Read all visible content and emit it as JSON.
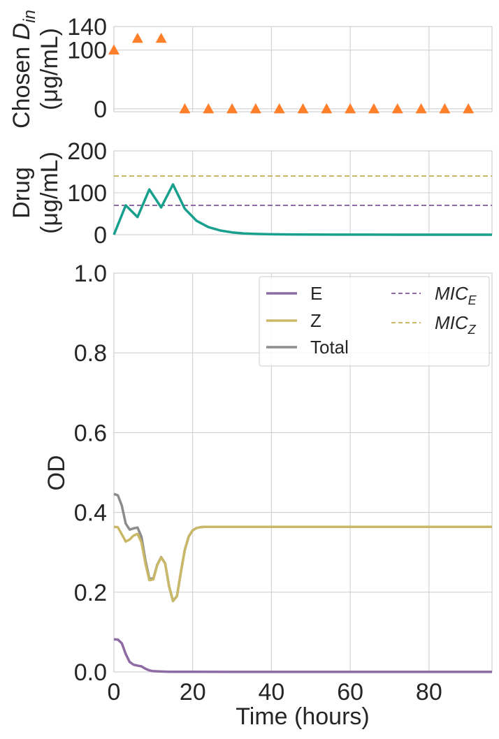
{
  "colors": {
    "dose": "#FF7F2A",
    "drug": "#17A08D",
    "E": "#8E6BA5",
    "Z": "#C9B867",
    "total": "#8C8C8C",
    "mic_e": "#8E6BA5",
    "mic_z": "#C9B867",
    "grid": "#D0D0D0"
  },
  "chart_data": [
    {
      "type": "scatter",
      "ylabel_line1": "Chosen ",
      "ylabel_symbol": "D",
      "ylabel_subscript": "in",
      "ylabel_line2": "(μg/mL)",
      "xlim": [
        0,
        96
      ],
      "ylim": [
        -5,
        140
      ],
      "yticks": [
        0,
        100,
        140
      ],
      "xticks": [
        0,
        20,
        40,
        60,
        80
      ],
      "marker": "triangle",
      "points": {
        "x": [
          0,
          6,
          12,
          18,
          24,
          30,
          36,
          42,
          48,
          54,
          60,
          66,
          72,
          78,
          84,
          90
        ],
        "y": [
          100,
          120,
          120,
          0,
          0,
          0,
          0,
          0,
          0,
          0,
          0,
          0,
          0,
          0,
          0,
          0
        ]
      }
    },
    {
      "type": "line",
      "ylabel_line1": "Drug",
      "ylabel_line2": "(μg/mL)",
      "xlim": [
        0,
        96
      ],
      "ylim": [
        0,
        200
      ],
      "yticks": [
        0,
        100,
        200
      ],
      "xticks": [
        0,
        20,
        40,
        60,
        80
      ],
      "hlines": [
        {
          "name": "MIC_E",
          "y": 70
        },
        {
          "name": "MIC_Z",
          "y": 140
        }
      ],
      "series": [
        {
          "x": [
            0,
            3,
            6,
            9,
            12,
            15,
            18,
            21,
            24,
            27,
            30,
            33,
            36,
            40,
            44,
            48,
            56,
            64,
            72,
            80,
            88,
            96
          ],
          "y": [
            0,
            70,
            42,
            108,
            65,
            120,
            62,
            33,
            18,
            10,
            5.5,
            3,
            1.8,
            1,
            0.6,
            0.4,
            0.2,
            0.1,
            0,
            0,
            0,
            0
          ]
        }
      ]
    },
    {
      "type": "line",
      "xlabel": "Time (hours)",
      "ylabel": "OD",
      "xlim": [
        0,
        96
      ],
      "ylim": [
        0,
        1.0
      ],
      "yticks": [
        "0.0",
        "0.2",
        "0.4",
        "0.6",
        "0.8",
        "1.0"
      ],
      "xticks": [
        "0",
        "20",
        "40",
        "60",
        "80"
      ],
      "series": [
        {
          "name": "E",
          "x": [
            0,
            1,
            2,
            3,
            4,
            5,
            6,
            7,
            8,
            9,
            10,
            12,
            14,
            20,
            30,
            40,
            60,
            80,
            96
          ],
          "y": [
            0.082,
            0.081,
            0.072,
            0.045,
            0.025,
            0.018,
            0.016,
            0.014,
            0.008,
            0.004,
            0.002,
            0.001,
            0.0005,
            0.0003,
            0.0002,
            0.0001,
            0.0001,
            0.0001,
            0.0001
          ]
        },
        {
          "name": "Z",
          "x": [
            0,
            1,
            2,
            3,
            4,
            5,
            6,
            7,
            8,
            9,
            10,
            11,
            12,
            13,
            14,
            15,
            16,
            17,
            18,
            19,
            20,
            21,
            22,
            23,
            24,
            26,
            30,
            40,
            60,
            80,
            96
          ],
          "y": [
            0.364,
            0.363,
            0.345,
            0.327,
            0.332,
            0.342,
            0.346,
            0.325,
            0.272,
            0.23,
            0.232,
            0.268,
            0.287,
            0.272,
            0.215,
            0.178,
            0.19,
            0.25,
            0.306,
            0.34,
            0.355,
            0.361,
            0.363,
            0.364,
            0.364,
            0.364,
            0.364,
            0.364,
            0.364,
            0.364,
            0.364
          ]
        },
        {
          "name": "Total",
          "x": [
            0,
            1,
            2,
            3,
            4,
            5,
            6,
            7,
            8,
            9,
            10,
            11,
            12,
            13,
            14,
            15,
            16,
            17,
            18,
            19,
            20,
            21,
            22,
            23,
            24,
            26,
            30,
            40,
            60,
            80,
            96
          ],
          "y": [
            0.446,
            0.443,
            0.417,
            0.372,
            0.357,
            0.36,
            0.362,
            0.339,
            0.28,
            0.234,
            0.234,
            0.269,
            0.288,
            0.272,
            0.215,
            0.178,
            0.19,
            0.25,
            0.306,
            0.34,
            0.355,
            0.361,
            0.363,
            0.364,
            0.364,
            0.364,
            0.364,
            0.364,
            0.364,
            0.364,
            0.364
          ]
        }
      ],
      "legend": {
        "placement": "top-right",
        "entries": [
          {
            "label": "E",
            "style": "solid",
            "series": "E"
          },
          {
            "label": "Z",
            "style": "solid",
            "series": "Z"
          },
          {
            "label": "Total",
            "style": "solid",
            "series": "Total"
          },
          {
            "label_main": "MIC",
            "label_sub": "E",
            "style": "dashed",
            "series": "mic_e"
          },
          {
            "label_main": "MIC",
            "label_sub": "Z",
            "style": "dashed",
            "series": "mic_z"
          }
        ]
      }
    }
  ]
}
